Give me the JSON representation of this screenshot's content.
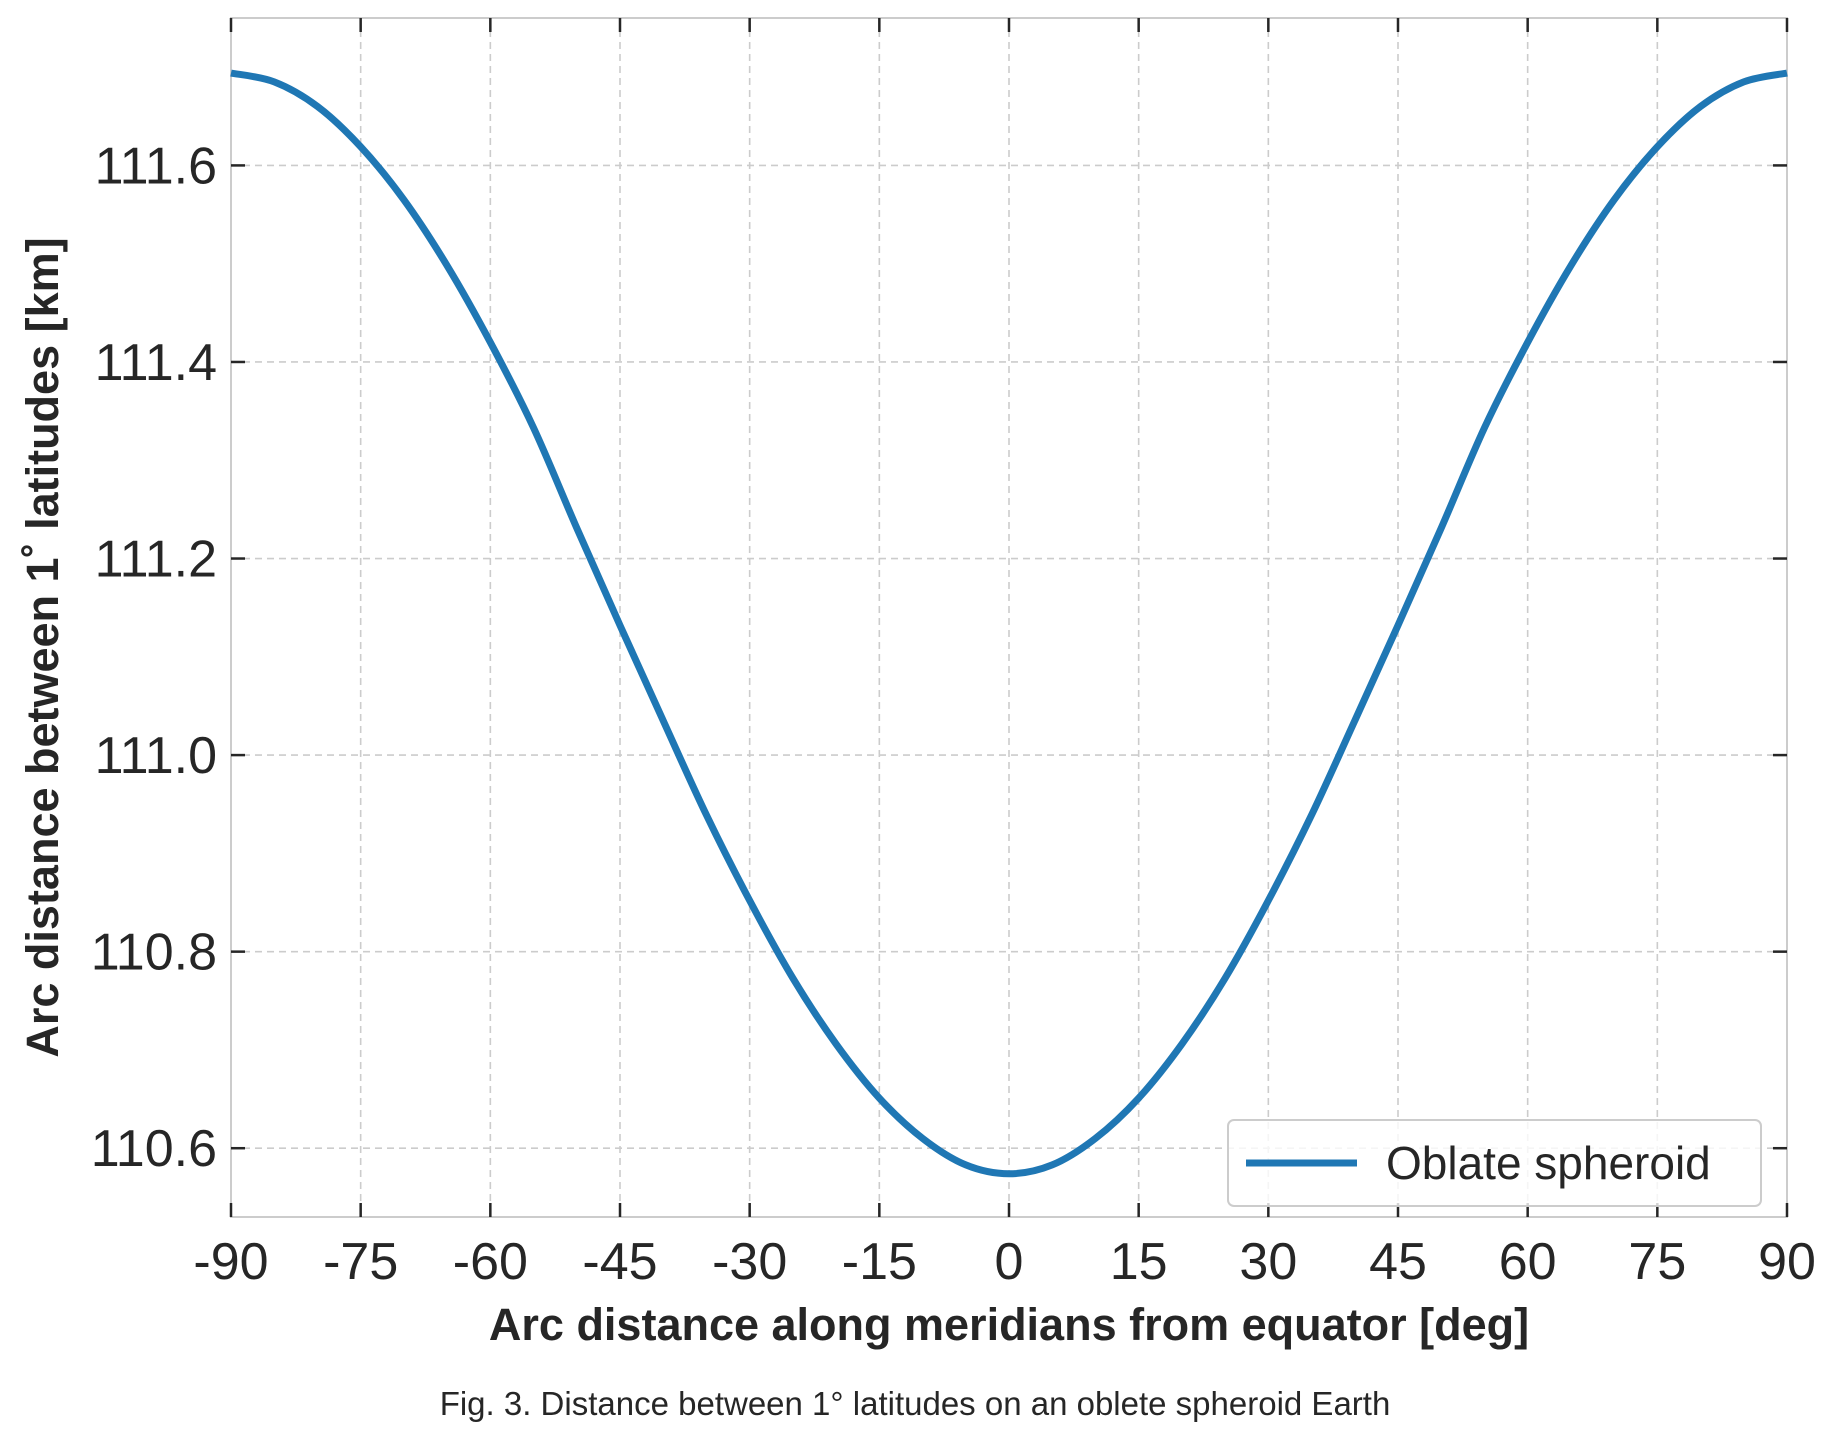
{
  "chart_data": {
    "type": "line",
    "xlabel": "Arc distance along meridians from equator [deg]",
    "ylabel": "Arc distance between 1$^\\circ$ latitudes [km]",
    "ylabel_display": "Arc distance between 1˚ latitudes [km]",
    "xlim": [
      -90,
      90
    ],
    "ylim": [
      110.53,
      111.75
    ],
    "xticks": [
      -90,
      -75,
      -60,
      -45,
      -30,
      -15,
      0,
      15,
      30,
      45,
      60,
      75,
      90
    ],
    "xtick_labels": [
      "-90",
      "-75",
      "-60",
      "-45",
      "-30",
      "-15",
      "0",
      "15",
      "30",
      "45",
      "60",
      "75",
      "90"
    ],
    "yticks": [
      110.6,
      110.8,
      111.0,
      111.2,
      111.4,
      111.6
    ],
    "ytick_labels": [
      "110.6",
      "110.8",
      "111.0",
      "111.2",
      "111.4",
      "111.6"
    ],
    "grid": true,
    "legend_position": "lower right",
    "series": [
      {
        "name": "Oblate spheroid",
        "color": "#1f77b4",
        "x": [
          -90,
          -85,
          -80,
          -75,
          -70,
          -65,
          -60,
          -55,
          -50,
          -45,
          -40,
          -35,
          -30,
          -25,
          -20,
          -15,
          -10,
          -5,
          0,
          5,
          10,
          15,
          20,
          25,
          30,
          35,
          40,
          45,
          50,
          55,
          60,
          65,
          70,
          75,
          80,
          85,
          90
        ],
        "y": [
          111.694,
          111.685,
          111.66,
          111.619,
          111.565,
          111.498,
          111.42,
          111.333,
          111.231,
          111.132,
          111.035,
          110.939,
          110.852,
          110.773,
          110.706,
          110.651,
          110.61,
          110.583,
          110.574,
          110.583,
          110.61,
          110.651,
          110.706,
          110.773,
          110.852,
          110.939,
          111.035,
          111.132,
          111.231,
          111.333,
          111.42,
          111.498,
          111.565,
          111.619,
          111.66,
          111.685,
          111.694
        ]
      }
    ]
  },
  "caption": "Fig. 3. Distance between 1° latitudes on an oblete spheroid Earth"
}
